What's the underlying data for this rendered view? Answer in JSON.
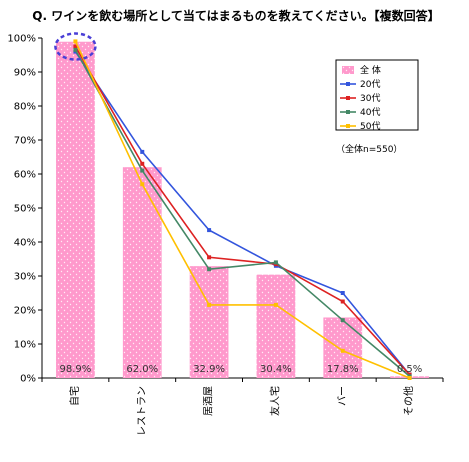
{
  "chart_data": {
    "type": "bar",
    "title": "Q. ワインを飲む場所として当てはまるものを教えてください。【複数回答】",
    "categories": [
      "自宅",
      "レストラン",
      "居酒屋",
      "友人宅",
      "バー",
      "その他"
    ],
    "ylim": [
      0,
      100
    ],
    "y_ticks": [
      "0%",
      "10%",
      "20%",
      "30%",
      "40%",
      "50%",
      "60%",
      "70%",
      "80%",
      "90%",
      "100%"
    ],
    "bar_series": {
      "name": "全 体",
      "color": "#ff99cc",
      "values": [
        98.9,
        62.0,
        32.9,
        30.4,
        17.8,
        0.5
      ],
      "value_labels": [
        "98.9%",
        "62.0%",
        "32.9%",
        "30.4%",
        "17.8%",
        "0.5%"
      ]
    },
    "line_series": [
      {
        "name": "20代",
        "color": "#3355dd",
        "values": [
          96,
          66.5,
          43.5,
          33,
          25,
          1
        ]
      },
      {
        "name": "30代",
        "color": "#dd2222",
        "values": [
          97.5,
          63,
          35.5,
          33.5,
          22.5,
          1
        ]
      },
      {
        "name": "40代",
        "color": "#448866",
        "values": [
          96.5,
          61,
          32,
          34,
          17,
          0.5
        ]
      },
      {
        "name": "50代",
        "color": "#ffc000",
        "values": [
          99,
          57,
          21.5,
          21.5,
          8,
          0
        ]
      }
    ],
    "note": "（全体n=550）",
    "legend_position": "top-right",
    "grid": false
  }
}
